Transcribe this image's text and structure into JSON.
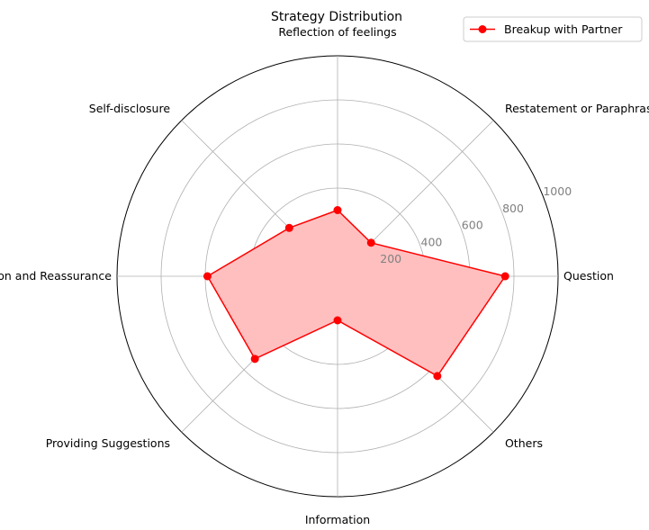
{
  "chart_data": {
    "type": "radar",
    "title": "Strategy Distribution",
    "categories": [
      "Question",
      "Restatement or Paraphrasing",
      "Reflection of feelings",
      "Self-disclosure",
      "Affirmation and Reassurance",
      "Providing Suggestions",
      "Information",
      "Others"
    ],
    "series": [
      {
        "name": "Breakup with Partner",
        "values": [
          760,
          215,
          300,
          310,
          590,
          530,
          200,
          640
        ],
        "line_color": "#ff0000",
        "fill_color": "#ffbfbf"
      }
    ],
    "rlim": [
      0,
      1000
    ],
    "r_ticks": [
      "200",
      "400",
      "600",
      "800",
      "1000"
    ],
    "grid": true,
    "legend": "top-right"
  }
}
